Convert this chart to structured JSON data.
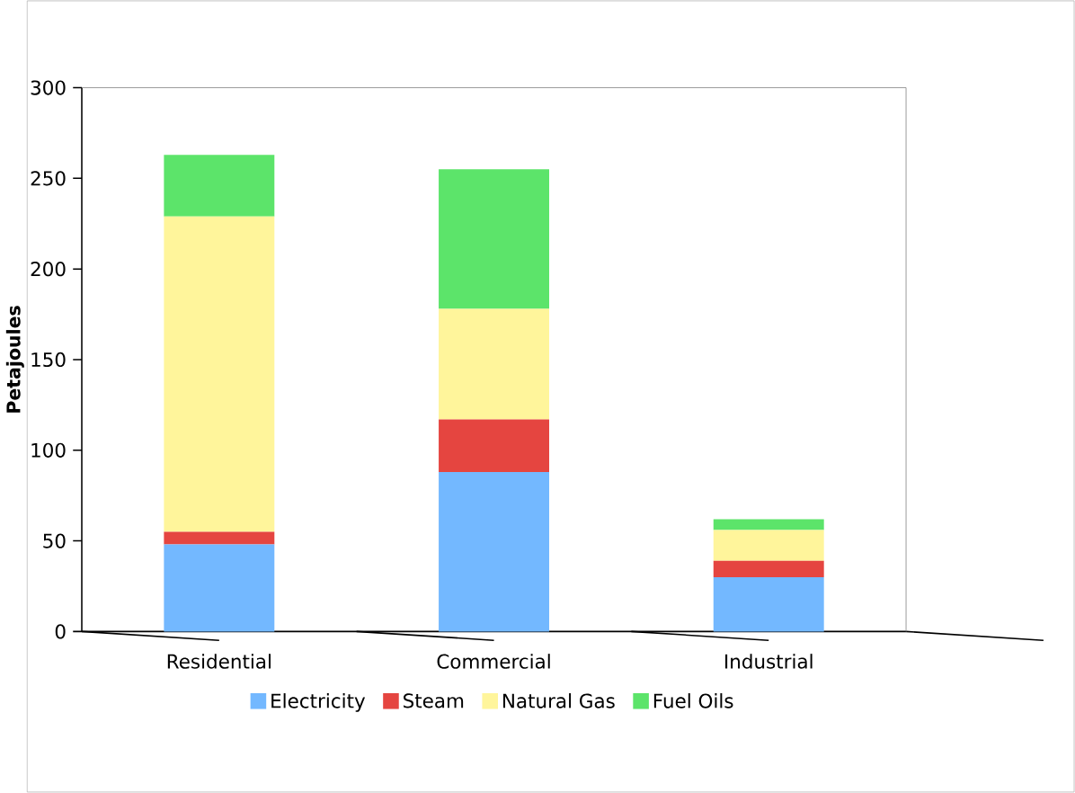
{
  "chart_data": {
    "type": "bar",
    "stacked": true,
    "ylabel": "Petajoules",
    "categories": [
      "Residential",
      "Commercial",
      "Industrial"
    ],
    "series": [
      {
        "name": "Electricity",
        "color": "#73b8ff",
        "values": [
          48,
          88,
          30
        ]
      },
      {
        "name": "Steam",
        "color": "#e54540",
        "values": [
          7,
          29,
          9
        ]
      },
      {
        "name": "Natural Gas",
        "color": "#fff59b",
        "values": [
          174,
          61,
          17
        ]
      },
      {
        "name": "Fuel Oils",
        "color": "#5ce46a",
        "values": [
          34,
          77,
          6
        ]
      }
    ],
    "ylim": [
      0,
      300
    ],
    "yticks": [
      0,
      50,
      100,
      150,
      200,
      250,
      300
    ],
    "legend": "bottom"
  }
}
